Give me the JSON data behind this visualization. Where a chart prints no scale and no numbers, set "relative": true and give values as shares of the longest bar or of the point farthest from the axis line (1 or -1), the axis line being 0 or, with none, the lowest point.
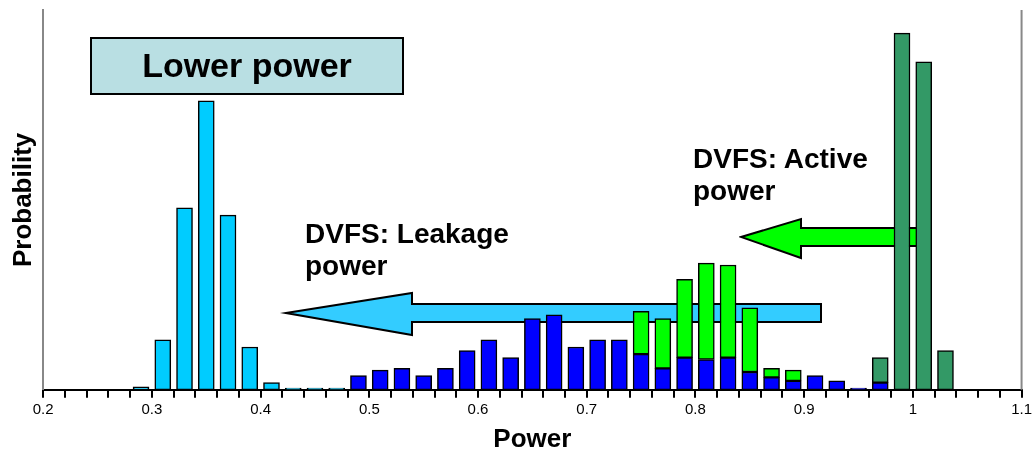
{
  "chart_data": {
    "type": "bar",
    "stacked": true,
    "relative": true,
    "xlabel": "Power",
    "ylabel": "Probability",
    "annotations": [
      "Lower power",
      "DVFS: Leakage power",
      "DVFS: Active power"
    ],
    "x": [
      0.29,
      0.31,
      0.33,
      0.35,
      0.37,
      0.39,
      0.41,
      0.43,
      0.45,
      0.47,
      0.49,
      0.51,
      0.53,
      0.55,
      0.57,
      0.59,
      0.61,
      0.63,
      0.65,
      0.67,
      0.69,
      0.71,
      0.73,
      0.75,
      0.77,
      0.79,
      0.81,
      0.83,
      0.85,
      0.87,
      0.89,
      0.91,
      0.93,
      0.95,
      0.97,
      0.99,
      1.01,
      1.03
    ],
    "series": [
      {
        "color": "#00ccff",
        "values": [
          0.008,
          0.14,
          0.51,
          0.81,
          0.49,
          0.12,
          0.02,
          0.005,
          0.005,
          0.005,
          null,
          null,
          null,
          null,
          null,
          null,
          null,
          null,
          null,
          null,
          null,
          null,
          null,
          null,
          null,
          null,
          null,
          null,
          null,
          null,
          null,
          null,
          null,
          null,
          null,
          null,
          null,
          null
        ]
      },
      {
        "color": "#0000ff",
        "values": [
          null,
          null,
          null,
          null,
          null,
          null,
          null,
          null,
          null,
          null,
          0.04,
          0.055,
          0.06,
          0.04,
          0.06,
          0.11,
          0.14,
          0.09,
          0.2,
          0.21,
          0.12,
          0.14,
          0.14,
          0.1,
          0.06,
          0.09,
          0.085,
          0.09,
          0.05,
          0.035,
          0.025,
          0.04,
          0.025,
          0.005,
          0.02,
          null,
          null,
          null
        ]
      },
      {
        "color": "#00ff00",
        "values": [
          null,
          null,
          null,
          null,
          null,
          null,
          null,
          null,
          null,
          null,
          null,
          null,
          null,
          null,
          null,
          null,
          null,
          null,
          null,
          null,
          null,
          null,
          null,
          0.12,
          0.14,
          0.22,
          0.27,
          0.26,
          0.18,
          0.025,
          0.03,
          null,
          null,
          null,
          null,
          null,
          null,
          null
        ]
      },
      {
        "color": "#339966",
        "values": [
          null,
          null,
          null,
          null,
          null,
          null,
          null,
          null,
          null,
          null,
          null,
          null,
          null,
          null,
          null,
          null,
          null,
          null,
          null,
          null,
          null,
          null,
          null,
          null,
          null,
          null,
          null,
          null,
          null,
          null,
          null,
          null,
          null,
          null,
          0.07,
          1,
          0.92,
          0.11
        ]
      }
    ],
    "xlim": [
      0.2,
      1.1
    ],
    "xticks": [
      0.2,
      {
        "value": 0.22,
        "label": null
      },
      {
        "value": 0.24,
        "label": null
      },
      {
        "value": 0.26,
        "label": null
      },
      {
        "value": 0.28,
        "label": null
      },
      0.3,
      {
        "value": 0.32,
        "label": null
      },
      {
        "value": 0.34,
        "label": null
      },
      {
        "value": 0.36,
        "label": null
      },
      {
        "value": 0.38,
        "label": null
      },
      0.4,
      {
        "value": 0.42,
        "label": null
      },
      {
        "value": 0.44,
        "label": null
      },
      {
        "value": 0.46,
        "label": null
      },
      {
        "value": 0.48,
        "label": null
      },
      0.5,
      {
        "value": 0.52,
        "label": null
      },
      {
        "value": 0.54,
        "label": null
      },
      {
        "value": 0.56,
        "label": null
      },
      {
        "value": 0.58,
        "label": null
      },
      0.6,
      {
        "value": 0.62,
        "label": null
      },
      {
        "value": 0.64,
        "label": null
      },
      {
        "value": 0.66,
        "label": null
      },
      {
        "value": 0.68,
        "label": null
      },
      0.7,
      {
        "value": 0.72,
        "label": null
      },
      {
        "value": 0.74,
        "label": null
      },
      {
        "value": 0.76,
        "label": null
      },
      {
        "value": 0.78,
        "label": null
      },
      0.8,
      {
        "value": 0.82,
        "label": null
      },
      {
        "value": 0.84,
        "label": null
      },
      {
        "value": 0.86,
        "label": null
      },
      {
        "value": 0.88,
        "label": null
      },
      0.9,
      {
        "value": 0.92,
        "label": null
      },
      {
        "value": 0.94,
        "label": null
      },
      {
        "value": 0.96,
        "label": null
      },
      {
        "value": 0.98,
        "label": null
      },
      1,
      {
        "value": 1.02,
        "label": null
      },
      {
        "value": 1.04,
        "label": null
      },
      {
        "value": 1.06,
        "label": null
      },
      {
        "value": 1.08,
        "label": null
      },
      1.1
    ],
    "tick_labels": "x",
    "grid": false,
    "legend": false
  }
}
